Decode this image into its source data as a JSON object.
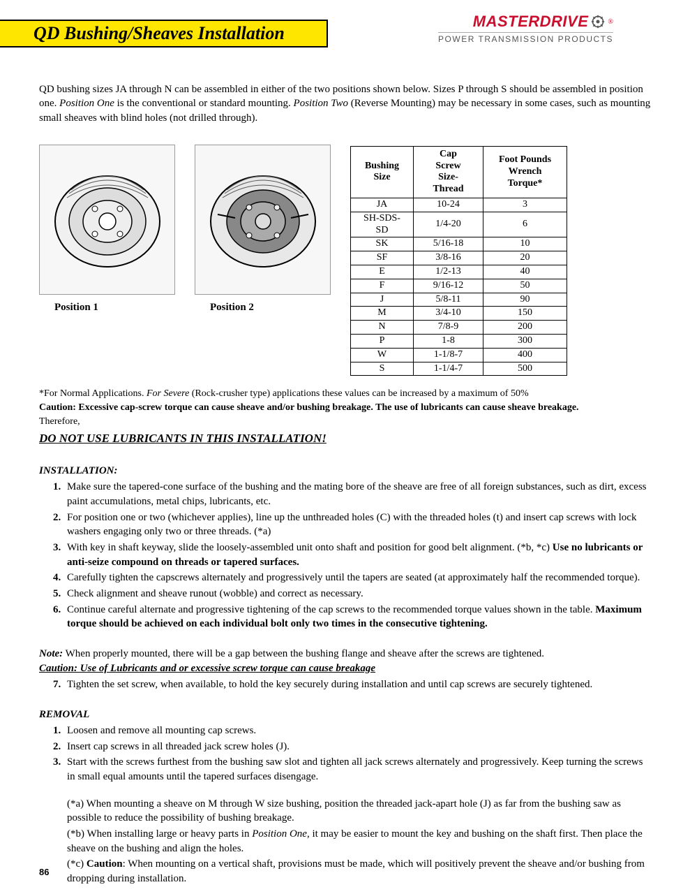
{
  "header": {
    "title": "QD Bushing/Sheaves Installation",
    "brand_name": "MASTERDRIVE",
    "brand_sub": "POWER TRANSMISSION PRODUCTS"
  },
  "intro": {
    "p1a": "QD bushing sizes JA through N can be assembled in either of the two positions shown below.  Sizes P through  S should be assembled in position one.  ",
    "p1b": "Position One",
    "p1c": " is the conventional or standard mounting.  ",
    "p1d": "Position Two",
    "p1e": " (Reverse Mounting)  may be necessary in some cases, such as mounting small sheaves with blind holes (not drilled through)."
  },
  "figures": {
    "pos1_label": "Position 1",
    "pos2_label": "Position 2"
  },
  "table": {
    "columns": [
      "Bushing Size",
      "Cap Screw Size-Thread",
      "Foot Pounds Wrench Torque*"
    ],
    "rows": [
      [
        "JA",
        "10-24",
        "3"
      ],
      [
        "SH-SDS-SD",
        "1/4-20",
        "6"
      ],
      [
        "SK",
        "5/16-18",
        "10"
      ],
      [
        "SF",
        "3/8-16",
        "20"
      ],
      [
        "E",
        "1/2-13",
        "40"
      ],
      [
        "F",
        "9/16-12",
        "50"
      ],
      [
        "J",
        "5/8-11",
        "90"
      ],
      [
        "M",
        "3/4-10",
        "150"
      ],
      [
        "N",
        "7/8-9",
        "200"
      ],
      [
        "P",
        "1-8",
        "300"
      ],
      [
        "W",
        "1-1/8-7",
        "400"
      ],
      [
        "S",
        "1-1/4-7",
        "500"
      ]
    ]
  },
  "footnote": {
    "a": "*For Normal Applications. ",
    "b": "For Severe",
    "c": " (Rock-crusher type) applications these values can be increased by a maximum of 50%"
  },
  "caution1": "Caution: Excessive cap-screw torque can cause sheave and/or bushing breakage. The use of lubricants can cause sheave breakage.",
  "therefore": "Therefore,",
  "no_lube": "DO NOT USE LUBRICANTS IN THIS INSTALLATION!",
  "installation": {
    "header": "INSTALLATION:",
    "steps": [
      {
        "n": "1.",
        "body": "Make sure the tapered-cone surface of the bushing and the mating bore of the sheave are free of all foreign substances, such as dirt, excess paint accumulations, metal chips, lubricants, etc."
      },
      {
        "n": "2.",
        "body": "For position one or two (whichever applies), line up the unthreaded holes (C) with the threaded holes (t) and insert cap screws with lock washers engaging only two or three threads.   (*a)"
      },
      {
        "n": "3.",
        "body": "With key in shaft keyway, slide the loosely-assembled unit onto shaft and position for good belt alignment. (*b, *c)  ",
        "bold": "Use no lubricants or anti-seize compound on threads or tapered surfaces."
      },
      {
        "n": "4.",
        "body": "   Carefully tighten the capscrews alternately and progressively until the tapers are seated (at approximately half the recommended torque)."
      },
      {
        "n": "5.",
        "body": "   Check alignment and sheave runout (wobble) and correct as necessary."
      },
      {
        "n": "6.",
        "body": "   Continue careful alternate and progressive tightening of the cap screws to the recommended torque values shown in the table.  ",
        "bold": "Maximum torque should be achieved on each individual bolt only two times in the consecutive tightening."
      }
    ]
  },
  "note": {
    "label": "Note:",
    "text": "  When properly mounted, there will be a gap between the bushing flange and sheave after the screws are tightened."
  },
  "caution2": "Caution:  Use of Lubricants and or excessive screw torque can cause breakage",
  "step7": {
    "n": "7.",
    "body": "Tighten the set screw, when available, to hold the key securely during installation and until cap screws are securely tightened."
  },
  "removal": {
    "header": "REMOVAL",
    "steps": [
      {
        "n": "1.",
        "body": "Loosen and remove all mounting cap screws."
      },
      {
        "n": "2.",
        "body": "Insert cap screws in all threaded jack screw holes (J)."
      },
      {
        "n": "3.",
        "body": "Start with the screws furthest from the bushing saw slot and tighten all jack screws alternately and progressively.  Keep turning the screws in small equal amounts until the tapered surfaces disengage."
      }
    ]
  },
  "asterisks": {
    "a": "(*a)  When mounting a sheave on M through W size bushing, position the threaded jack-apart hole (J) as far from the bushing saw as possible to reduce the possibility of bushing breakage.",
    "b1": "(*b)  When installing large or heavy parts in ",
    "b_em": "Position One",
    "b2": ", it may be easier to mount the key and bushing on the shaft first.  Then place the sheave on the bushing and align the holes.",
    "c1": "(*c)  ",
    "c_bold": "Caution",
    "c2": ": When mounting on a vertical shaft, provisions must be made, which will positively prevent the sheave and/or bushing from dropping during installation."
  },
  "page_num": "86"
}
